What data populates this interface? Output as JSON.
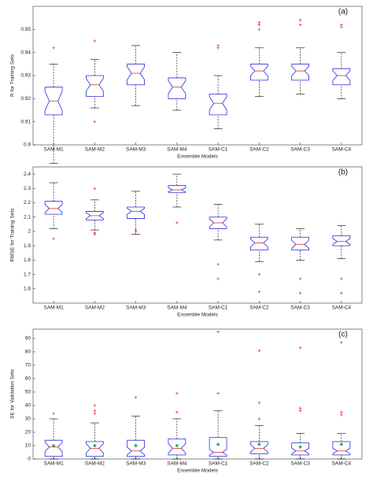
{
  "chart_data": [
    {
      "type": "box",
      "panel_label": "(a)",
      "y_label": "R for Training Sets",
      "x_label": "Ensemble Models",
      "categories": [
        "SAM-M1",
        "SAM-M2",
        "SAM-M3",
        "SAM-M4",
        "SAM-C1",
        "SAM-C2",
        "SAM-C3",
        "SAM-C4"
      ],
      "ylim": [
        0.9,
        0.96
      ],
      "yticks": [
        0.9,
        0.91,
        0.92,
        0.93,
        0.94,
        0.95
      ],
      "box_color": "#2b2bd6",
      "median_color": "#e03030",
      "outlier_color": "#e03030",
      "boxes": [
        {
          "low": 0.892,
          "q1": 0.913,
          "median": 0.919,
          "q3": 0.925,
          "high": 0.935,
          "outliers": [
            0.942
          ]
        },
        {
          "low": 0.916,
          "q1": 0.921,
          "median": 0.926,
          "q3": 0.93,
          "high": 0.937,
          "outliers": [
            0.945,
            0.91
          ]
        },
        {
          "low": 0.917,
          "q1": 0.926,
          "median": 0.931,
          "q3": 0.935,
          "high": 0.943,
          "outliers": []
        },
        {
          "low": 0.915,
          "q1": 0.92,
          "median": 0.925,
          "q3": 0.929,
          "high": 0.94,
          "outliers": []
        },
        {
          "low": 0.907,
          "q1": 0.913,
          "median": 0.918,
          "q3": 0.922,
          "high": 0.93,
          "outliers": [
            0.942,
            0.943
          ]
        },
        {
          "low": 0.921,
          "q1": 0.928,
          "median": 0.932,
          "q3": 0.935,
          "high": 0.942,
          "outliers": [
            0.95,
            0.952,
            0.953
          ]
        },
        {
          "low": 0.922,
          "q1": 0.928,
          "median": 0.932,
          "q3": 0.935,
          "high": 0.942,
          "outliers": [
            0.952,
            0.954
          ]
        },
        {
          "low": 0.92,
          "q1": 0.926,
          "median": 0.93,
          "q3": 0.933,
          "high": 0.94,
          "outliers": [
            0.951,
            0.952
          ]
        }
      ]
    },
    {
      "type": "box",
      "panel_label": "(b)",
      "y_label": "RMSE for Training Sets",
      "x_label": "Ensemble Models",
      "categories": [
        "SAM-M1",
        "SAM-M2",
        "SAM-M3",
        "SAM-M4",
        "SAM-C1",
        "SAM-C2",
        "SAM-C3",
        "SAM-C4"
      ],
      "ylim": [
        1.5,
        2.45
      ],
      "yticks": [
        1.6,
        1.7,
        1.8,
        1.9,
        2,
        2.1,
        2.2,
        2.3,
        2.4
      ],
      "box_color": "#2b2bd6",
      "median_color": "#e03030",
      "outlier_color": "#e03030",
      "boxes": [
        {
          "low": 2.02,
          "q1": 2.12,
          "median": 2.16,
          "q3": 2.21,
          "high": 2.34,
          "outliers": [
            1.95
          ]
        },
        {
          "low": 2.01,
          "q1": 2.08,
          "median": 2.11,
          "q3": 2.14,
          "high": 2.22,
          "outliers": [
            2.3,
            1.99,
            1.98
          ]
        },
        {
          "low": 1.98,
          "q1": 2.09,
          "median": 2.14,
          "q3": 2.17,
          "high": 2.28,
          "outliers": [
            2.0,
            2.01
          ]
        },
        {
          "low": 2.17,
          "q1": 2.27,
          "median": 2.29,
          "q3": 2.32,
          "high": 2.4,
          "outliers": [
            2.06
          ]
        },
        {
          "low": 1.94,
          "q1": 2.02,
          "median": 2.06,
          "q3": 2.1,
          "high": 2.19,
          "outliers": [
            1.77,
            1.67
          ]
        },
        {
          "low": 1.79,
          "q1": 1.87,
          "median": 1.92,
          "q3": 1.96,
          "high": 2.05,
          "outliers": [
            1.7,
            1.58
          ]
        },
        {
          "low": 1.8,
          "q1": 1.87,
          "median": 1.91,
          "q3": 1.96,
          "high": 2.02,
          "outliers": [
            1.67,
            1.57
          ]
        },
        {
          "low": 1.81,
          "q1": 1.9,
          "median": 1.93,
          "q3": 1.97,
          "high": 2.04,
          "outliers": [
            1.67,
            1.57
          ]
        }
      ]
    },
    {
      "type": "box",
      "panel_label": "(c)",
      "y_label": "SE for Validation Sets",
      "x_label": "Ensemble Models",
      "categories": [
        "SAM-M1",
        "SAM-M2",
        "SAM-M3",
        "SAM-M4",
        "SAM-C1",
        "SAM-C2",
        "SAM-C3",
        "SAM-C4"
      ],
      "ylim": [
        0,
        97
      ],
      "yticks": [
        0,
        10,
        20,
        30,
        40,
        50,
        60,
        70,
        80,
        90
      ],
      "box_color": "#2b2bd6",
      "median_color": "#e03030",
      "outlier_color": "#e03030",
      "mean_color": "#1a9a50",
      "boxes": [
        {
          "low": 0,
          "q1": 2,
          "median": 9,
          "q3": 14,
          "high": 30,
          "mean": 10,
          "outliers": [
            34
          ]
        },
        {
          "low": 0,
          "q1": 2,
          "median": 8,
          "q3": 13,
          "high": 27,
          "mean": 10,
          "outliers": [
            34,
            36,
            40
          ]
        },
        {
          "low": 0,
          "q1": 2,
          "median": 6,
          "q3": 14,
          "high": 32,
          "mean": 10,
          "outliers": [
            46
          ]
        },
        {
          "low": 0,
          "q1": 3,
          "median": 8,
          "q3": 15,
          "high": 30,
          "mean": 10,
          "outliers": [
            35,
            49
          ]
        },
        {
          "low": 0,
          "q1": 2,
          "median": 5,
          "q3": 16,
          "high": 36,
          "mean": 11,
          "outliers": [
            49,
            95
          ]
        },
        {
          "low": 0,
          "q1": 4,
          "median": 8,
          "q3": 13,
          "high": 25,
          "mean": 11,
          "outliers": [
            30,
            42,
            81
          ]
        },
        {
          "low": 0,
          "q1": 3,
          "median": 6,
          "q3": 12,
          "high": 19,
          "mean": 9,
          "outliers": [
            36,
            38,
            83
          ]
        },
        {
          "low": 0,
          "q1": 3,
          "median": 6,
          "q3": 13,
          "high": 19,
          "mean": 11,
          "outliers": [
            33,
            35,
            87
          ]
        }
      ]
    }
  ]
}
